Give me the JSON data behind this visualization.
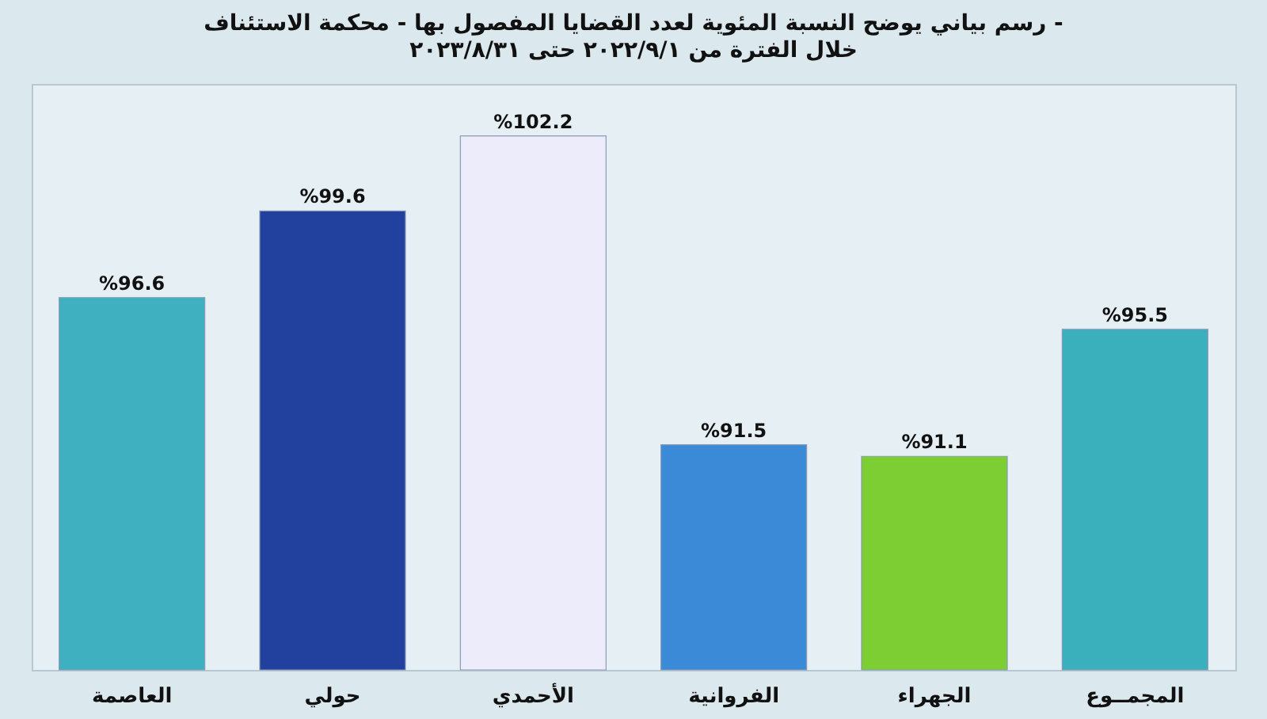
{
  "chart_data": {
    "type": "bar",
    "title": "رسم بياني يوضح النسبة المئوية لعدد القضايا المفصول بها - محكمة الاستئناف -",
    "subtitle": "خلال الفترة من ٢٠٢٢/٩/١ حتى ٢٠٢٣/٨/٣١",
    "categories": [
      "العاصمة",
      "حولي",
      "الأحمدي",
      "الفروانية",
      "الجهراء",
      "المجمــوع"
    ],
    "values": [
      96.6,
      99.6,
      102.2,
      91.5,
      91.1,
      95.5
    ],
    "value_labels": [
      "%96.6",
      "%99.6",
      "%102.2",
      "%91.5",
      "%91.1",
      "%95.5"
    ],
    "colors": [
      "#3fb0c0",
      "#22409e",
      "#ececfa",
      "#3a8ad8",
      "#7cce32",
      "#3bb0bd"
    ],
    "ylim": [
      83.7,
      104
    ],
    "tick_labels": "x"
  }
}
